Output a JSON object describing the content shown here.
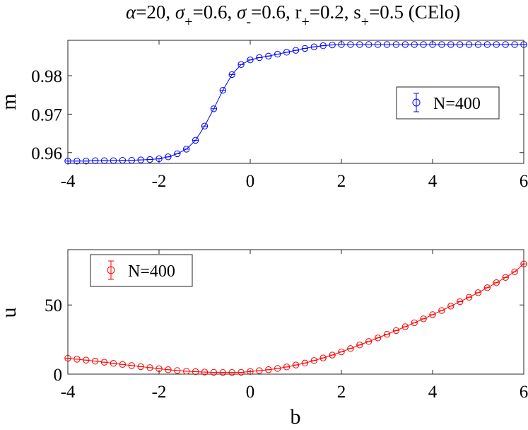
{
  "chart_data": [
    {
      "type": "line",
      "title": {
        "alpha_sym": "α",
        "alpha_val": "=20, ",
        "sigma1_sym": "σ",
        "sigma1_sub": "+",
        "sigma1_val": "=0.6, ",
        "sigma2_sym": "σ",
        "sigma2_sub": "-",
        "sigma2_val": "=0.6, ",
        "r_sym": "r",
        "r_sub": "+",
        "r_val": "=0.2, ",
        "s_sym": "s",
        "s_sub": "+",
        "s_val": "=0.5 (CElo)"
      },
      "xlabel": "",
      "ylabel": "m",
      "xlim": [
        -4,
        6
      ],
      "ylim": [
        0.9572,
        0.9892
      ],
      "xticks": [
        "-4",
        "-2",
        "0",
        "2",
        "4",
        "6"
      ],
      "yticks": [
        "0.96",
        "0.97",
        "0.98"
      ],
      "yticks_values": [
        0.96,
        0.97,
        0.98
      ],
      "color": "#0000ff",
      "legend": {
        "label": "N=400",
        "position": "right"
      },
      "series": [
        {
          "name": "N=400",
          "x": [
            -4,
            -3.8,
            -3.6,
            -3.4,
            -3.2,
            -3,
            -2.8,
            -2.6,
            -2.4,
            -2.2,
            -2,
            -1.8,
            -1.6,
            -1.4,
            -1.2,
            -1,
            -0.8,
            -0.6,
            -0.4,
            -0.2,
            0,
            0.2,
            0.4,
            0.6,
            0.8,
            1,
            1.2,
            1.4,
            1.6,
            1.8,
            2,
            2.2,
            2.4,
            2.6,
            2.8,
            3,
            3.2,
            3.4,
            3.6,
            3.8,
            4,
            4.2,
            4.4,
            4.6,
            4.8,
            5,
            5.2,
            5.4,
            5.6,
            5.8,
            6
          ],
          "values": [
            0.9578,
            0.9578,
            0.9578,
            0.9579,
            0.9579,
            0.9579,
            0.958,
            0.958,
            0.9581,
            0.9582,
            0.9584,
            0.9589,
            0.9597,
            0.9609,
            0.9632,
            0.9669,
            0.9714,
            0.9762,
            0.9803,
            0.9829,
            0.9841,
            0.9847,
            0.9851,
            0.9856,
            0.9861,
            0.9866,
            0.9871,
            0.9875,
            0.9878,
            0.988,
            0.9881,
            0.9881,
            0.9881,
            0.9881,
            0.9881,
            0.9881,
            0.9881,
            0.9881,
            0.9881,
            0.9881,
            0.9881,
            0.9881,
            0.9881,
            0.9881,
            0.9881,
            0.9881,
            0.9881,
            0.9881,
            0.9881,
            0.9881,
            0.9881
          ]
        }
      ]
    },
    {
      "type": "line",
      "xlabel": "b",
      "ylabel": "u",
      "xlim": [
        -4,
        6
      ],
      "ylim": [
        0,
        90
      ],
      "xticks": [
        "-4",
        "-2",
        "0",
        "2",
        "4",
        "6"
      ],
      "yticks": [
        "0",
        "50"
      ],
      "yticks_values": [
        0,
        50
      ],
      "color": "#ff0000",
      "legend": {
        "label": "N=400",
        "position": "top-left"
      },
      "series": [
        {
          "name": "N=400",
          "x": [
            -4,
            -3.8,
            -3.6,
            -3.4,
            -3.2,
            -3,
            -2.8,
            -2.6,
            -2.4,
            -2.2,
            -2,
            -1.8,
            -1.6,
            -1.4,
            -1.2,
            -1,
            -0.8,
            -0.6,
            -0.4,
            -0.2,
            0,
            0.2,
            0.4,
            0.6,
            0.8,
            1,
            1.2,
            1.4,
            1.6,
            1.8,
            2,
            2.2,
            2.4,
            2.6,
            2.8,
            3,
            3.2,
            3.4,
            3.6,
            3.8,
            4,
            4.2,
            4.4,
            4.6,
            4.8,
            5,
            5.2,
            5.4,
            5.6,
            5.8,
            6
          ],
          "values": [
            11.5,
            10.8,
            10.1,
            9.4,
            8.6,
            7.8,
            7.0,
            6.2,
            5.4,
            4.7,
            3.9,
            3.2,
            2.6,
            2.1,
            1.8,
            1.5,
            1.3,
            1.2,
            1.2,
            1.3,
            1.9,
            2.5,
            3.2,
            4.1,
            5.2,
            6.6,
            8.0,
            9.8,
            11.7,
            13.8,
            16.1,
            18.5,
            21.1,
            23.6,
            26.2,
            28.8,
            31.5,
            34.3,
            37.1,
            40.0,
            43.0,
            46.0,
            49.2,
            52.4,
            55.6,
            58.9,
            62.5,
            66.1,
            69.9,
            74.0,
            79.7
          ]
        }
      ]
    }
  ]
}
